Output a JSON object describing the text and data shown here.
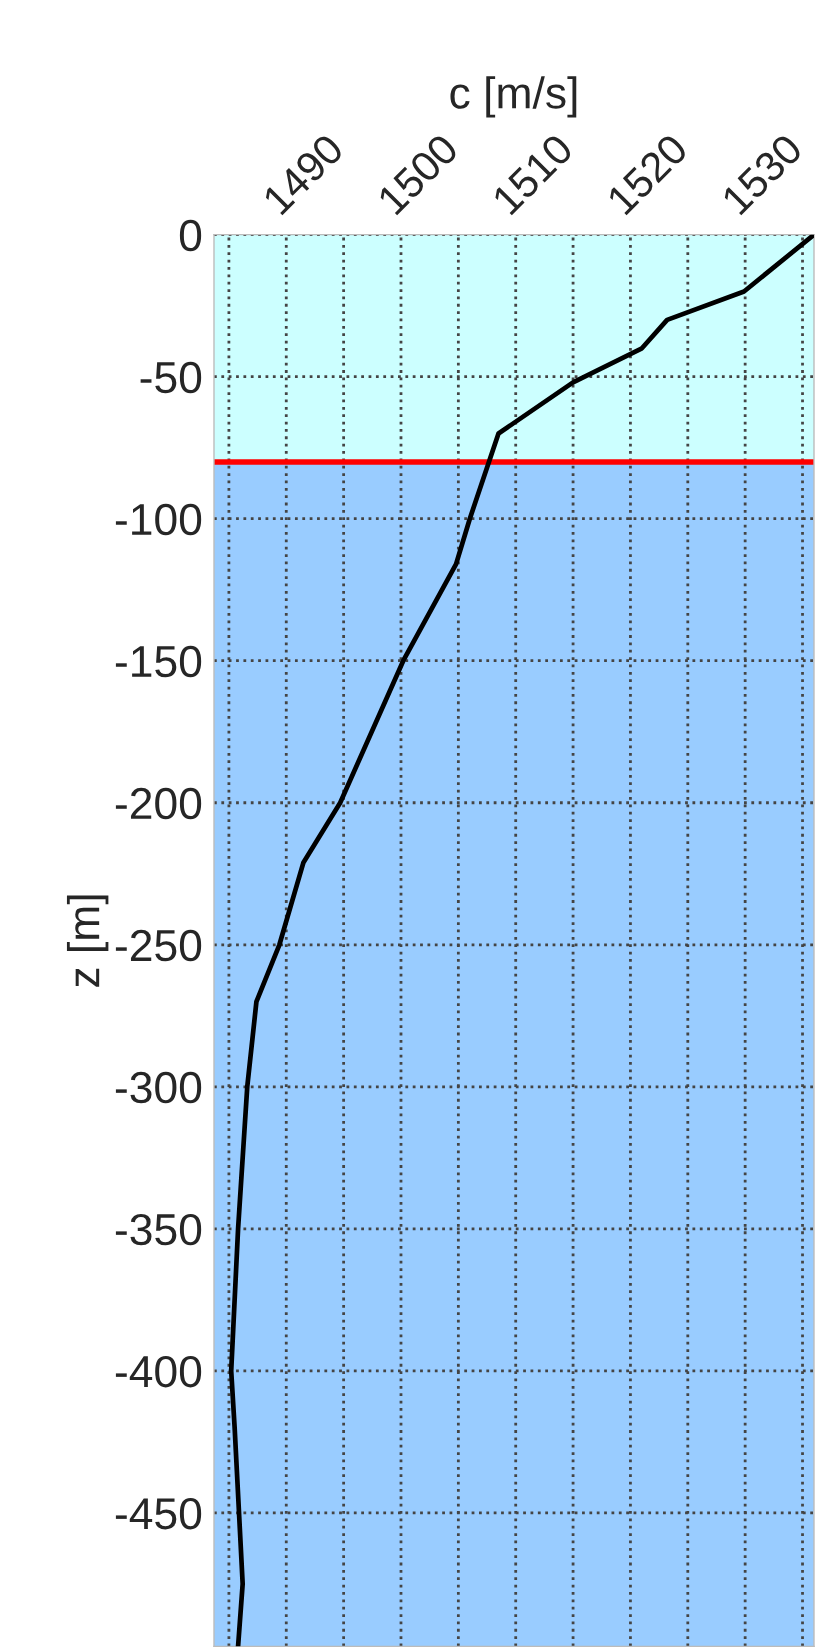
{
  "chart_data": {
    "type": "line",
    "xlabel": "c [m/s]",
    "ylabel": "z [m]",
    "x": [
      0,
      -20,
      -30,
      -40,
      -52,
      -70,
      -100,
      -116,
      -150,
      -200,
      -221,
      -250,
      -270,
      -300,
      -350,
      -400,
      -420,
      -475,
      -497
    ],
    "series": [
      {
        "color": "#000000",
        "values": [
          1536.0,
          1529.9,
          1523.2,
          1521.0,
          1515.0,
          1508.5,
          1506.0,
          1504.8,
          1500.2,
          1494.7,
          1491.5,
          1489.4,
          1487.4,
          1486.6,
          1485.8,
          1485.2,
          1485.5,
          1486.2,
          1485.8
        ]
      }
    ],
    "orientation": "horizontal",
    "xlim": [
      1483.7,
      1536
    ],
    "ylim": [
      -497,
      0
    ],
    "xticks": [
      {
        "value": 1485,
        "label": null
      },
      1490,
      {
        "value": 1495,
        "label": null
      },
      1500,
      {
        "value": 1505,
        "label": null
      },
      1510,
      {
        "value": 1515,
        "label": null
      },
      1520,
      {
        "value": 1525,
        "label": null
      },
      1530,
      {
        "value": 1535,
        "label": null
      }
    ],
    "yticks": [
      0,
      -50,
      -100,
      -150,
      -200,
      -250,
      -300,
      -350,
      -400,
      -450
    ],
    "bands": [
      {
        "axis": "y",
        "from": -80,
        "to": 0,
        "color": "#ccffff"
      },
      {
        "axis": "y",
        "from": -497,
        "to": -80,
        "color": "#99ccff"
      }
    ],
    "ref_lines": [
      {
        "axis": "y",
        "value": -80,
        "color": "#ff0000",
        "line_style": "solid"
      }
    ],
    "grid": true,
    "line_style": "solid",
    "marker": "none"
  }
}
